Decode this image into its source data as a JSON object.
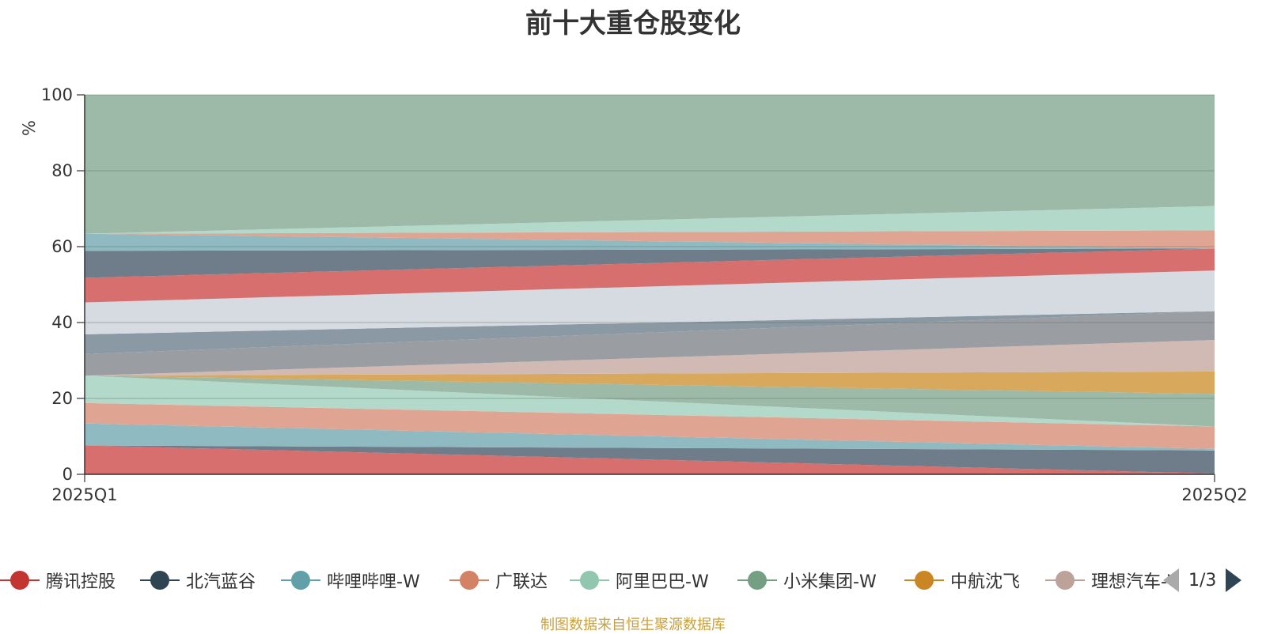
{
  "title": "前十大重仓股变化",
  "footer": "制图数据来自恒生聚源数据库",
  "legend_page": "1/3",
  "chart_data": {
    "type": "area",
    "stacked": true,
    "title": "前十大重仓股变化",
    "x": [
      "2025Q1",
      "2025Q2"
    ],
    "ylabel": "%",
    "ylim": [
      0,
      100
    ],
    "yticks": [
      0,
      20,
      40,
      60,
      80,
      100
    ],
    "grid": true,
    "legend_position": "bottom",
    "series": [
      {
        "name": "腾讯控股",
        "color": "#d66f6d",
        "values": [
          7.6,
          0.2
        ]
      },
      {
        "name": "北汽蓝谷",
        "color": "#6e7d89",
        "values": [
          0.0,
          6.1
        ]
      },
      {
        "name": "哔哩哔哩-W",
        "color": "#8fbac2",
        "values": [
          5.8,
          0.4
        ]
      },
      {
        "name": "广联达",
        "color": "#e0a592",
        "values": [
          5.4,
          5.9
        ]
      },
      {
        "name": "阿里巴巴-W",
        "color": "#b2d9c9",
        "values": [
          7.2,
          0.0
        ]
      },
      {
        "name": "小米集团-W",
        "color": "#9db9a8",
        "values": [
          0.0,
          8.6
        ]
      },
      {
        "name": "中航沈飞",
        "color": "#d8a85c",
        "values": [
          0.0,
          5.9
        ]
      },
      {
        "name": "理想汽车-W",
        "color": "#d1bab3",
        "values": [
          0.0,
          8.3
        ]
      },
      {
        "name": "",
        "color": "#9a9ea3",
        "values": [
          5.7,
          7.6
        ]
      },
      {
        "name": "",
        "color": "#8a99a3",
        "values": [
          5.2,
          0.0
        ]
      },
      {
        "name": "",
        "color": "#d6dbe2",
        "values": [
          8.4,
          10.7
        ]
      },
      {
        "name": "",
        "color": "#d66f6d",
        "values": [
          6.5,
          5.8
        ]
      },
      {
        "name": "",
        "color": "#6e7d89",
        "values": [
          7.1,
          0.0
        ]
      },
      {
        "name": "",
        "color": "#8fbac2",
        "values": [
          4.5,
          0.0
        ]
      },
      {
        "name": "",
        "color": "#e0a592",
        "values": [
          0.0,
          4.8
        ]
      },
      {
        "name": "",
        "color": "#b2d9c9",
        "values": [
          0.0,
          6.4
        ]
      },
      {
        "name": "",
        "color": "#9db9a8",
        "values": [
          36.6,
          29.3
        ]
      }
    ]
  }
}
